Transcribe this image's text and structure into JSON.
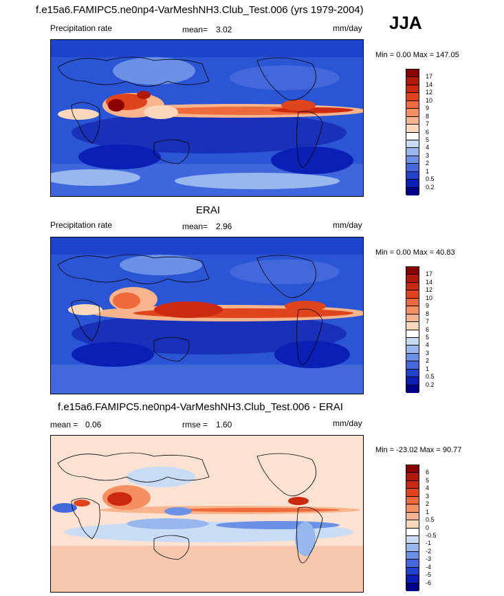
{
  "header": {
    "title": "f.e15a6.FAMIPC5.ne0np4-VarMeshNH3.Club_Test.006 (yrs 1979-2004)",
    "season": "JJA"
  },
  "panels": [
    {
      "subtitle": "",
      "left_label": "Precipitation rate",
      "mean_label": "mean=",
      "mean_value": "3.02",
      "units": "mm/day",
      "minmax": "Min =   0.00 Max = 147.05",
      "colorbar": {
        "levels": [
          "17",
          "14",
          "12",
          "10",
          "9",
          "8",
          "7",
          "6",
          "5",
          "4",
          "3",
          "2",
          "1",
          "0.5",
          "0.2"
        ],
        "colors": [
          "#8b0000",
          "#b01a0a",
          "#cc2a10",
          "#e0441c",
          "#ef6a3c",
          "#f59062",
          "#f8b48c",
          "#fbd8bc",
          "#ffffff",
          "#c9dcf5",
          "#97b7ee",
          "#6b91e6",
          "#4268dc",
          "#1f44cc",
          "#0a1fb4",
          "#00008b"
        ]
      }
    },
    {
      "subtitle": "ERAI",
      "left_label": "Precipitation rate",
      "mean_label": "mean=",
      "mean_value": "2.96",
      "units": "mm/day",
      "minmax": "Min =   0.00 Max =  40.83",
      "colorbar": {
        "levels": [
          "17",
          "14",
          "12",
          "10",
          "9",
          "8",
          "7",
          "6",
          "5",
          "4",
          "3",
          "2",
          "1",
          "0.5",
          "0.2"
        ],
        "colors": [
          "#8b0000",
          "#b01a0a",
          "#cc2a10",
          "#e0441c",
          "#ef6a3c",
          "#f59062",
          "#f8b48c",
          "#fbd8bc",
          "#ffffff",
          "#c9dcf5",
          "#97b7ee",
          "#6b91e6",
          "#4268dc",
          "#1f44cc",
          "#0a1fb4",
          "#00008b"
        ]
      }
    },
    {
      "subtitle": "f.e15a6.FAMIPC5.ne0np4-VarMeshNH3.Club_Test.006 - ERAI",
      "left_label": "mean =",
      "mean_value": "0.06",
      "rmse_label": "rmse =",
      "rmse_value": "1.60",
      "units": "mm/day",
      "minmax": "Min = -23.02 Max =  90.77",
      "colorbar": {
        "levels": [
          "6",
          "5",
          "4",
          "3",
          "2",
          "1",
          "0.5",
          "0",
          "-0.5",
          "-1",
          "-2",
          "-3",
          "-4",
          "-5",
          "-6"
        ],
        "colors": [
          "#8b0000",
          "#b01a0a",
          "#cc2a10",
          "#e0441c",
          "#ef6a3c",
          "#f59062",
          "#f8b48c",
          "#fbd8bc",
          "#ffffff",
          "#c9dcf5",
          "#97b7ee",
          "#6b91e6",
          "#4268dc",
          "#1f44cc",
          "#0a1fb4",
          "#00008b"
        ]
      }
    }
  ]
}
